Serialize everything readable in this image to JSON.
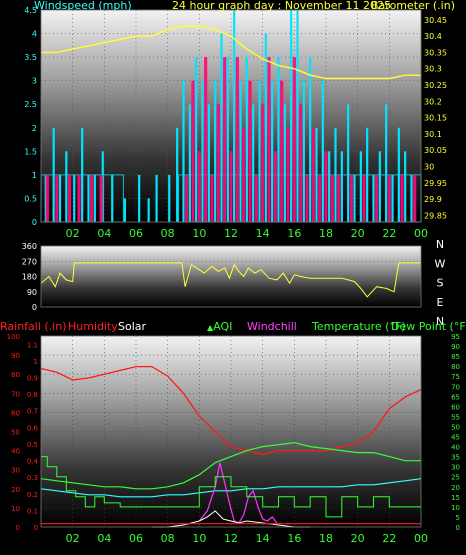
{
  "header": {
    "left_title": "Windspeed (mph)",
    "center_title": "24 hour graph day : November 11 2025",
    "right_title": "Barometer (.in)"
  },
  "colors": {
    "background": "#000000",
    "wind": "#00e5ff",
    "gust": "#ff0a78",
    "barometer": "#ffff33",
    "direction": "#ffff33",
    "humidity": "#ff1a1a",
    "temperature": "#33ff33",
    "dewpoint": "#33ffff",
    "windchill": "#ff33ff",
    "aqi": "#33ff33",
    "solar": "#ffffff",
    "rainfall": "#ff1a1a",
    "axis_left": "#33ffff",
    "axis_x": "#33ff33",
    "axis_right": "#ffff33"
  },
  "chart_data": [
    {
      "type": "bar",
      "name": "wind",
      "x_ticks": [
        "02",
        "04",
        "06",
        "08",
        "10",
        "12",
        "14",
        "16",
        "18",
        "20",
        "22",
        "00"
      ],
      "x_range_hours": [
        0,
        24
      ],
      "y_left_ticks": [
        "0",
        "0.5",
        "1",
        "1.5",
        "2",
        "2.5",
        "3",
        "3.5",
        "4",
        "4.5"
      ],
      "y_left_range": [
        0,
        4.5
      ],
      "y_right_ticks": [
        "29.85",
        "29.9",
        "29.95",
        "30",
        "30.05",
        "30.1",
        "30.15",
        "30.2",
        "30.25",
        "30.3",
        "30.35",
        "30.4",
        "30.45"
      ],
      "y_right_range": [
        29.83,
        30.48
      ],
      "series": [
        {
          "name": "Windspeed (mph)",
          "kind": "bars",
          "x": [
            0.3,
            0.8,
            1.2,
            1.6,
            2.1,
            2.6,
            3.0,
            3.4,
            3.9,
            4.5,
            5.3,
            6.2,
            6.8,
            7.3,
            8.1,
            8.6,
            9.0,
            9.4,
            9.8,
            10.2,
            10.6,
            11.0,
            11.4,
            11.8,
            12.2,
            12.6,
            13.0,
            13.4,
            13.8,
            14.2,
            14.6,
            15.0,
            15.4,
            15.8,
            16.2,
            16.6,
            17.0,
            17.4,
            17.8,
            18.2,
            18.6,
            19.0,
            19.4,
            19.8,
            20.2,
            20.6,
            21.0,
            21.4,
            21.8,
            22.2,
            22.6,
            23.0,
            23.4
          ],
          "y": [
            1.0,
            2.0,
            1.0,
            1.5,
            1.0,
            2.0,
            1.0,
            1.0,
            1.5,
            1.0,
            0.5,
            1.0,
            0.5,
            1.0,
            1.0,
            2.0,
            3.0,
            2.5,
            3.5,
            3.0,
            2.5,
            3.0,
            4.0,
            3.5,
            4.5,
            3.0,
            3.5,
            2.5,
            3.0,
            4.0,
            3.0,
            3.5,
            2.5,
            4.5,
            4.5,
            3.0,
            3.5,
            2.0,
            3.0,
            1.5,
            2.0,
            1.5,
            2.5,
            1.0,
            1.5,
            2.0,
            1.0,
            1.5,
            2.5,
            1.0,
            2.0,
            1.5,
            1.0
          ]
        },
        {
          "name": "Gust",
          "kind": "bars",
          "x": [
            0.4,
            1.0,
            1.8,
            2.4,
            3.2,
            3.8,
            9.2,
            9.6,
            10.0,
            10.4,
            10.8,
            11.2,
            11.6,
            12.0,
            12.4,
            12.8,
            13.2,
            13.6,
            14.0,
            14.4,
            14.8,
            15.2,
            15.6,
            16.0,
            16.4,
            16.8,
            17.2,
            17.6,
            18.0,
            18.4,
            18.8,
            19.6,
            20.4,
            21.2,
            22.0,
            22.8,
            23.6
          ],
          "y": [
            1.0,
            1.0,
            1.0,
            1.0,
            1.0,
            1.0,
            1.0,
            3.0,
            1.5,
            3.5,
            1.0,
            2.5,
            3.5,
            1.5,
            3.5,
            2.0,
            3.0,
            1.0,
            2.5,
            3.5,
            1.5,
            3.0,
            2.0,
            3.5,
            2.5,
            1.0,
            2.0,
            1.0,
            1.5,
            1.0,
            1.0,
            1.0,
            1.0,
            1.0,
            1.0,
            1.0,
            1.0
          ]
        },
        {
          "name": "Barometer (.in)",
          "kind": "line",
          "x": [
            0,
            1,
            2,
            3,
            4,
            5,
            6,
            7,
            8,
            9,
            10,
            11,
            12,
            13,
            14,
            15,
            16,
            17,
            18,
            19,
            20,
            21,
            22,
            23,
            24
          ],
          "y": [
            30.35,
            30.35,
            30.36,
            30.37,
            30.38,
            30.39,
            30.4,
            30.4,
            30.42,
            30.43,
            30.43,
            30.42,
            30.4,
            30.36,
            30.33,
            30.31,
            30.3,
            30.28,
            30.27,
            30.27,
            30.27,
            30.27,
            30.27,
            30.28,
            30.28
          ]
        }
      ]
    },
    {
      "type": "line",
      "name": "wind_direction",
      "x_range_hours": [
        0,
        24
      ],
      "y_ticks": [
        "0",
        "90",
        "180",
        "270",
        "360"
      ],
      "y_range": [
        0,
        360
      ],
      "right_labels": [
        "N",
        "W",
        "S",
        "E",
        "N"
      ],
      "series": [
        {
          "name": "Wind direction",
          "x": [
            0.0,
            0.5,
            0.9,
            1.2,
            1.6,
            2.0,
            2.1,
            3.5,
            3.6,
            4.5,
            6.0,
            7.0,
            8.9,
            9.1,
            9.5,
            10.0,
            10.3,
            10.8,
            11.2,
            11.6,
            11.9,
            12.2,
            12.5,
            12.8,
            13.1,
            13.5,
            13.9,
            14.4,
            14.9,
            15.3,
            15.7,
            16.0,
            16.4,
            17.0,
            18.0,
            19.0,
            19.4,
            19.8,
            20.2,
            20.6,
            21.2,
            21.8,
            22.3,
            22.6,
            23.0,
            24.0
          ],
          "y": [
            140,
            180,
            120,
            200,
            160,
            150,
            260,
            260,
            260,
            260,
            260,
            260,
            260,
            120,
            250,
            220,
            200,
            240,
            210,
            230,
            170,
            250,
            210,
            180,
            230,
            200,
            220,
            170,
            160,
            200,
            140,
            190,
            180,
            170,
            170,
            170,
            160,
            150,
            110,
            60,
            120,
            110,
            90,
            260,
            260,
            260
          ]
        }
      ]
    },
    {
      "type": "line",
      "name": "temperature_humidity",
      "x_ticks": [
        "02",
        "04",
        "06",
        "08",
        "10",
        "12",
        "14",
        "16",
        "18",
        "20",
        "22",
        "00"
      ],
      "x_range_hours": [
        0,
        24
      ],
      "y_humidity_ticks": [
        "0",
        "10",
        "20",
        "30",
        "40",
        "50",
        "60",
        "70",
        "80",
        "90",
        "100"
      ],
      "y_humidity_range": [
        0,
        100
      ],
      "y_rain_ticks": [
        "0",
        "0.1",
        "0.2",
        "0.3",
        "0.4",
        "0.5",
        "0.6",
        "0.7",
        "0.8",
        "0.9",
        "1",
        "1.1"
      ],
      "y_rain_range": [
        0,
        1.15
      ],
      "y_right_ticks": [
        "0",
        "5",
        "10",
        "15",
        "20",
        "25",
        "30",
        "35",
        "40",
        "45",
        "50",
        "55",
        "60",
        "65",
        "70",
        "75",
        "80",
        "85",
        "90",
        "95"
      ],
      "y_right_range": [
        0,
        95
      ],
      "legend": [
        "Rainfall (.in)",
        "Humidity",
        "Solar",
        "AQI",
        "Windchill",
        "Temperature (°F)",
        "Dew Point (°F)"
      ],
      "series": [
        {
          "name": "Humidity",
          "x": [
            0,
            1,
            2,
            3,
            4,
            5,
            6,
            7,
            8,
            9,
            10,
            11,
            12,
            13,
            14,
            15,
            16,
            17,
            18,
            19,
            20,
            21,
            22,
            23,
            24
          ],
          "y": [
            83,
            81,
            77,
            78,
            80,
            82,
            84,
            84,
            79,
            70,
            58,
            50,
            42,
            40,
            38,
            40,
            40,
            40,
            40,
            42,
            44,
            50,
            62,
            68,
            72
          ]
        },
        {
          "name": "Temperature (°F)",
          "x": [
            0,
            1,
            2,
            3,
            4,
            5,
            6,
            7,
            8,
            9,
            10,
            11,
            12,
            13,
            14,
            15,
            16,
            17,
            18,
            19,
            20,
            21,
            22,
            23,
            24
          ],
          "y": [
            24,
            23,
            22,
            21,
            20,
            20,
            19,
            19,
            20,
            22,
            26,
            32,
            35,
            38,
            40,
            41,
            42,
            40,
            39,
            38,
            37,
            37,
            35,
            33,
            33
          ]
        },
        {
          "name": "Dew Point (°F)",
          "x": [
            0,
            1,
            2,
            3,
            4,
            5,
            6,
            7,
            8,
            9,
            10,
            11,
            12,
            13,
            14,
            15,
            16,
            17,
            18,
            19,
            20,
            21,
            22,
            23,
            24
          ],
          "y": [
            19,
            18,
            17,
            16,
            16,
            15,
            15,
            15,
            16,
            16,
            17,
            18,
            18,
            19,
            19,
            20,
            20,
            20,
            20,
            20,
            21,
            21,
            22,
            23,
            24
          ]
        },
        {
          "name": "Windchill",
          "x": [
            10.0,
            10.5,
            11.0,
            11.3,
            11.6,
            11.9,
            12.2,
            12.5,
            12.8,
            13.1,
            13.4,
            13.7,
            14.0,
            14.3,
            14.6,
            14.9
          ],
          "y": [
            3,
            8,
            20,
            32,
            22,
            12,
            3,
            2,
            6,
            15,
            18,
            10,
            4,
            3,
            5,
            2
          ]
        },
        {
          "name": "AQI",
          "x": [
            0,
            0.4,
            1.0,
            1.6,
            2.2,
            2.8,
            3.4,
            4.0,
            5.0,
            6.0,
            7.0,
            8.0,
            9.0,
            10.0,
            11.0,
            12.0,
            13.0,
            14.0,
            15.0,
            16.0,
            17.0,
            18.0,
            19.0,
            20.0,
            21.0,
            22.0,
            23.0,
            24.0
          ],
          "y": [
            35,
            30,
            25,
            18,
            15,
            10,
            15,
            12,
            10,
            10,
            10,
            10,
            10,
            20,
            25,
            20,
            15,
            10,
            15,
            10,
            15,
            5,
            15,
            10,
            15,
            10,
            10,
            10
          ]
        },
        {
          "name": "Solar",
          "x": [
            7.0,
            8.0,
            9.0,
            10.0,
            10.5,
            11.0,
            11.5,
            12.0,
            12.5,
            13.0,
            14.0,
            15.0,
            16.0,
            17.0
          ],
          "y": [
            0,
            0,
            1,
            3,
            5,
            8,
            4,
            3,
            2,
            3,
            2,
            1,
            0,
            0
          ]
        },
        {
          "name": "Rainfall (.in)",
          "x": [
            0,
            24
          ],
          "y": [
            0.02,
            0.02
          ]
        }
      ]
    }
  ]
}
